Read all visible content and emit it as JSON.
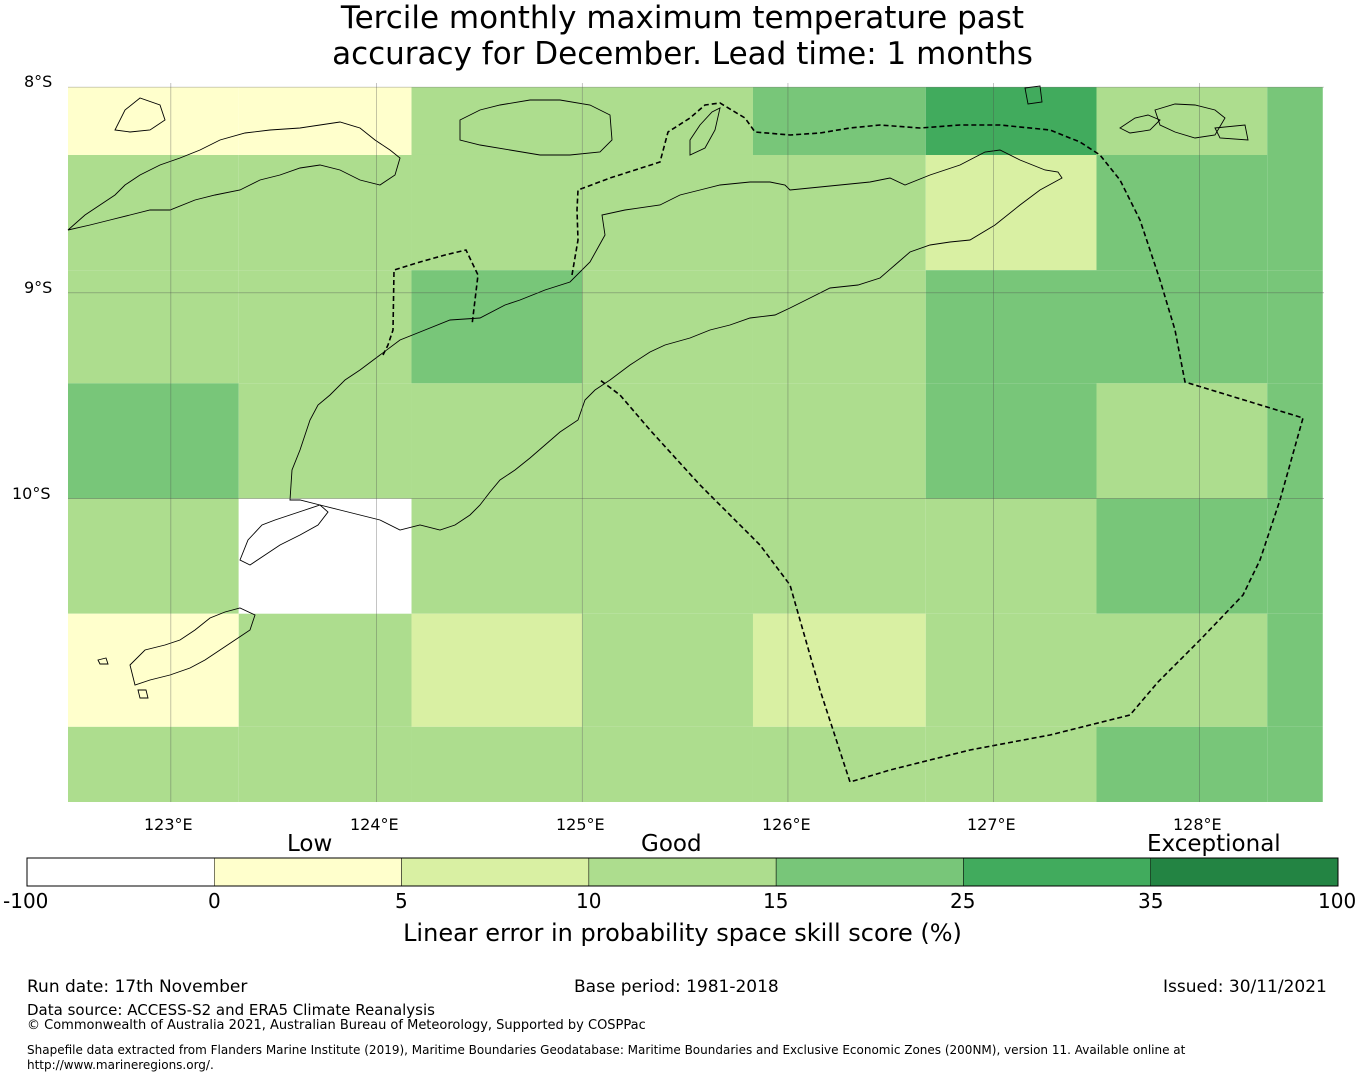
{
  "title": {
    "line1": "Tercile monthly maximum temperature past",
    "line2": "accuracy for December. Lead time: 1 months"
  },
  "map": {
    "lat_labels": [
      "8°S",
      "9°S",
      "10°S"
    ],
    "lon_labels": [
      "123°E",
      "124°E",
      "125°E",
      "126°E",
      "127°E",
      "128°E"
    ],
    "grid": {
      "lon_edges": [
        122.5,
        123.33,
        124.17,
        125.0,
        125.83,
        126.67,
        127.5,
        128.33,
        128.6
      ],
      "lat_edges": [
        -8.0,
        -8.33,
        -8.89,
        -9.44,
        -10.0,
        -10.56,
        -11.11,
        -11.5
      ],
      "skill_bin": [
        [
          1,
          1,
          3,
          3,
          4,
          5,
          3,
          4
        ],
        [
          3,
          3,
          3,
          3,
          3,
          2,
          4,
          4
        ],
        [
          3,
          3,
          4,
          3,
          3,
          4,
          4,
          4
        ],
        [
          4,
          3,
          3,
          3,
          3,
          4,
          3,
          4
        ],
        [
          3,
          0,
          3,
          3,
          3,
          3,
          4,
          4
        ],
        [
          1,
          3,
          2,
          3,
          2,
          3,
          3,
          4
        ],
        [
          3,
          3,
          3,
          3,
          3,
          3,
          4,
          4
        ]
      ]
    }
  },
  "colorbar": {
    "category_labels": [
      "Low",
      "Good",
      "Exceptional"
    ],
    "ticks": [
      "-100",
      "0",
      "5",
      "10",
      "15",
      "25",
      "35",
      "100"
    ],
    "colors": [
      "#ffffff",
      "#ffffcc",
      "#d9f0a3",
      "#addd8e",
      "#78c679",
      "#41ab5d",
      "#238443"
    ],
    "title": "Linear error in probability space skill score (%)"
  },
  "footer": {
    "run_date": "Run date: 17th November",
    "base_period": "Base period: 1981-2018",
    "issued": "Issued: 30/11/2021",
    "data_source": "Data source: ACCESS-S2 and ERA5 Climate Reanalysis",
    "copyright": "© Commonwealth of Australia 2021, Australian Bureau of Meteorology, Supported by COSPPac",
    "shapefile_line1": "Shapefile data extracted from Flanders Marine Institute (2019), Maritime Boundaries Geodatabase: Maritime Boundaries and Exclusive Economic Zones (200NM), version 11. Available online at",
    "shapefile_line2": "http://www.marineregions.org/."
  }
}
